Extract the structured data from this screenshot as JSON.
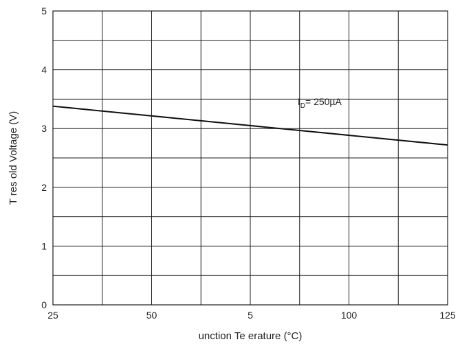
{
  "chart_data": {
    "type": "line",
    "title": "",
    "xlabel": "unction Te erature (°C)",
    "ylabel": "T res old Voltage (V)",
    "xlim": [
      25,
      125
    ],
    "ylim": [
      0,
      5
    ],
    "grid": true,
    "x_tick_labels": [
      "25",
      "50",
      "5",
      "100",
      "125"
    ],
    "y_tick_labels": [
      "0",
      "1",
      "2",
      "3",
      "4",
      "5"
    ],
    "series": [
      {
        "x": [
          25,
          125
        ],
        "y": [
          3.38,
          2.72
        ]
      }
    ],
    "annotation": {
      "main": "I",
      "subscript": "D",
      "rest": "= 250µA",
      "x": 87,
      "y": 3.4
    }
  }
}
